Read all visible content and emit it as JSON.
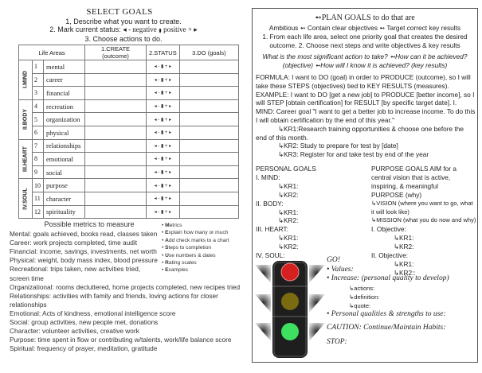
{
  "select_goals": {
    "title": "SELECT GOALS",
    "step1": "1, Describe what you want to create.",
    "step2_prefix": "2. Mark current status:",
    "step2_neg": "◂ - negative",
    "step2_mid": "▮",
    "step2_pos": "positive + ▸",
    "step3": "3. Choose actions to do.",
    "headers": [
      "Life Areas",
      "1.CREATE (outcome)",
      "2.STATUS",
      "3.DO (goals)"
    ],
    "status_scale": "◂ - ▮ + ▸",
    "groups": [
      {
        "label": "I.MIND",
        "rows": [
          {
            "n": "1",
            "area": "mental"
          },
          {
            "n": "2",
            "area": "career"
          },
          {
            "n": "3",
            "area": "financial"
          }
        ]
      },
      {
        "label": "II.BODY",
        "rows": [
          {
            "n": "4",
            "area": "recreation"
          },
          {
            "n": "5",
            "area": "organization"
          },
          {
            "n": "6",
            "area": "physical"
          }
        ]
      },
      {
        "label": "III.HEART",
        "rows": [
          {
            "n": "7",
            "area": "relationships"
          },
          {
            "n": "8",
            "area": "emotional"
          },
          {
            "n": "9",
            "area": "social"
          }
        ]
      },
      {
        "label": "IV.SOUL",
        "rows": [
          {
            "n": "10",
            "area": "purpose"
          },
          {
            "n": "11",
            "area": "character"
          },
          {
            "n": "12",
            "area": "spirituality"
          }
        ]
      }
    ]
  },
  "metrics": {
    "heading": "Possible metrics to measure",
    "lines": [
      "Mental: goals achieved, books read, classes taken",
      "Career: work projects completed, time audit",
      "Financial: income, savings, investments, net worth",
      "Physical: weight, body mass index, blood pressure",
      "Recreational: trips taken, new activities tried,",
      "screen time",
      "Organizational: rooms decluttered, home projects completed, new recipes tried",
      "Relationships: activities with family and friends, loving actions for closer",
      "relationships",
      "Emotional: Acts of kindness, emotional intelligence score",
      "Social: group activities, new people met, donations",
      "Character: volunteer activities, creative work",
      "Purpose: time spent in flow or contributing w/talents, work/life balance score",
      "Spiritual: frequency of prayer, meditation, gratitude"
    ],
    "acronym": [
      {
        "l": "M",
        "t": "etrics"
      },
      {
        "l": "E",
        "t": "xplain how many or much"
      },
      {
        "l": "A",
        "t": "dd check marks to a chart"
      },
      {
        "l": "S",
        "t": "teps to completion"
      },
      {
        "l": "U",
        "t": "se numbers & dates"
      },
      {
        "l": "R",
        "t": "ating scales"
      },
      {
        "l": "E",
        "t": "xamples"
      }
    ]
  },
  "plan": {
    "title": "➻PLAN GOALS to do that are",
    "line2": "Ambitious ➻ Contain clear objectives ➻ Target correct key results",
    "line3": "1. From each life area, select one priority goal that creates the desired outcome. 2. Choose next steps and write objectives & key results",
    "question": "What is the most significant action to take? ➻How can it be achieved? (objective) ➻How will I know it is achieved? (key results)",
    "formula": "FORMULA: I want to DO (goal) in order to PRODUCE (outcome), so I will take these STEPS (objectives) tied to KEY RESULTS (measures). EXAMPLE: I want to DO [get a new job] to PRODUCE [better income], so I will STEP [obtain certification] for RESULT [by specific target date]. I. MIND: Career goal \"I want to get a better job to increase income. To do this I will obtain certification by the end of this year.\"",
    "kr1": "↳KR1:Research training opportunities & choose one before the",
    "kr1b": "end of this month.",
    "kr2": "↳KR2: Study to prepare for test by [date]",
    "kr3": "↳KR3: Register for and take test by end of the year",
    "personal": {
      "title": "PERSONAL GOALS",
      "sections": [
        "I. MIND:",
        "II. BODY:",
        "III. HEART:",
        "IV. SOUL:"
      ],
      "kr1": "↳KR1:",
      "kr2": "↳KR2:"
    },
    "purpose": {
      "intro": "PURPOSE GOALS AIM for a central vision that is active, inspiring, & meaningful",
      "purpose": "PURPOSE (why)",
      "vision": "↳VISION (where you want to go, what it will look like)",
      "mission": "↳MISSION (what you do now and why)",
      "obj1": "I. Objective:",
      "obj2": "II. Objective:",
      "kr1": "↳KR1:",
      "kr2": "↳KR2:",
      "kr2b": "↳KR2::"
    },
    "go": {
      "go": "GO!",
      "values": "• Values:",
      "increase": "• Increase: (personal quality to develop)",
      "actions": "↳actions:",
      "definition": "↳definition:",
      "quote": "↳quote:",
      "qualities": "• Personal qualities & strengths to use:",
      "caution": "CAUTION: Continue/Maintain Habits:",
      "stop": "STOP:"
    },
    "traffic_light_colors": {
      "red": "#d42020",
      "yellow": "#7a6a10",
      "green": "#3ee060"
    }
  }
}
